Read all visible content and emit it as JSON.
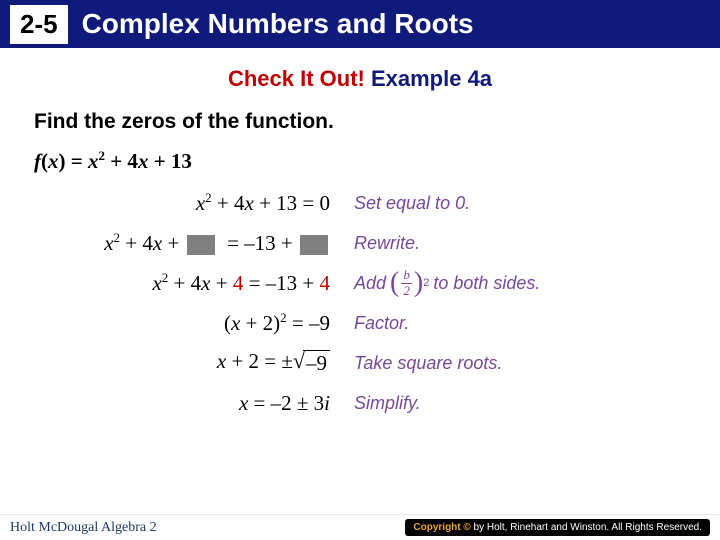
{
  "colors": {
    "title_bg": "#0f1a7a",
    "title_fg": "#ffffff",
    "badge_bg": "#ffffff",
    "badge_fg": "#000000",
    "red": "#c00000",
    "blue": "#0f1a7a",
    "note_purple": "#76489a",
    "blank_gray": "#808080",
    "footer_text": "#1a3a6a",
    "footer_badge_bg": "#000000",
    "footer_badge_c": "#f0a030"
  },
  "font_sizes": {
    "title": 28,
    "badge": 26,
    "subtitle": 22,
    "instruction": 21,
    "math": 21,
    "note": 18,
    "footer": 14
  },
  "header": {
    "lesson": "2-5",
    "title": "Complex Numbers and Roots"
  },
  "subtitle": {
    "red": "Check It Out! ",
    "blue": "Example 4a"
  },
  "instruction": "Find the zeros of the function.",
  "main_eq": {
    "lhs": "f(x) = ",
    "rhs": "x² + 4x + 13"
  },
  "steps": [
    {
      "math_html": "<span>x</span><sup>2</sup><span class='up'> + 4</span><span>x</span><span class='up'> + 13 = 0</span>",
      "note": "Set equal to 0."
    },
    {
      "math_html": "<span>x</span><sup>2</sup><span class='up'> + 4</span><span>x</span><span class='up'> + </span><span class='blank'></span><span class='up'> &nbsp;= –13 + </span><span class='blank'></span>",
      "note": "Rewrite."
    },
    {
      "math_html": "<span>x</span><sup>2</sup><span class='up'> + 4</span><span>x</span><span class='up'> + </span><span class='red4'>4</span><span class='up'> = –13 + </span><span class='red4'>4</span>",
      "note_prefix": "Add ",
      "note_suffix": "to both sides.",
      "frac": {
        "num": "b",
        "den": "2",
        "exp": "2"
      }
    },
    {
      "math_html": "<span class='up'>(</span><span>x</span><span class='up'> + 2)</span><sup>2</sup><span class='up'> = –9</span>",
      "note": "Factor."
    },
    {
      "math_html": "<span>x</span><span class='up'> + 2 = ±</span><span class='sqrt-wrap'><span class='radical'>√</span><span class='radicand'>–9</span></span>",
      "note": "Take square roots."
    },
    {
      "math_html": "<span>x</span><span class='up'> = –2 ± 3</span><span>i</span>",
      "note": "Simplify."
    }
  ],
  "footer": {
    "left": "Holt McDougal Algebra 2",
    "right_c": "Copyright ©",
    "right_rest": " by Holt, Rinehart and Winston. All Rights Reserved."
  }
}
